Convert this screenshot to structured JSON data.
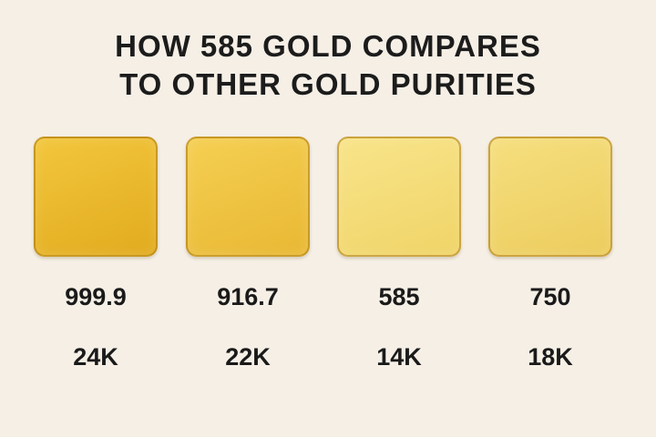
{
  "title": {
    "line1": "HOW 585 GOLD COMPARES",
    "line2": "TO OTHER GOLD PURITIES"
  },
  "swatches": [
    {
      "purity": "999.9",
      "karat": "24K",
      "color_top": "#f2c63c",
      "color_bottom": "#e2ab1e"
    },
    {
      "purity": "916.7",
      "karat": "22K",
      "color_top": "#f5cf52",
      "color_bottom": "#e8b833"
    },
    {
      "purity": "585",
      "karat": "14K",
      "color_top": "#f8e48a",
      "color_bottom": "#f0d467"
    },
    {
      "purity": "750",
      "karat": "18K",
      "color_top": "#f6df7f",
      "color_bottom": "#eccc5d"
    }
  ],
  "colors": {
    "background": "#f5efe6",
    "text": "#1a1a1a"
  }
}
